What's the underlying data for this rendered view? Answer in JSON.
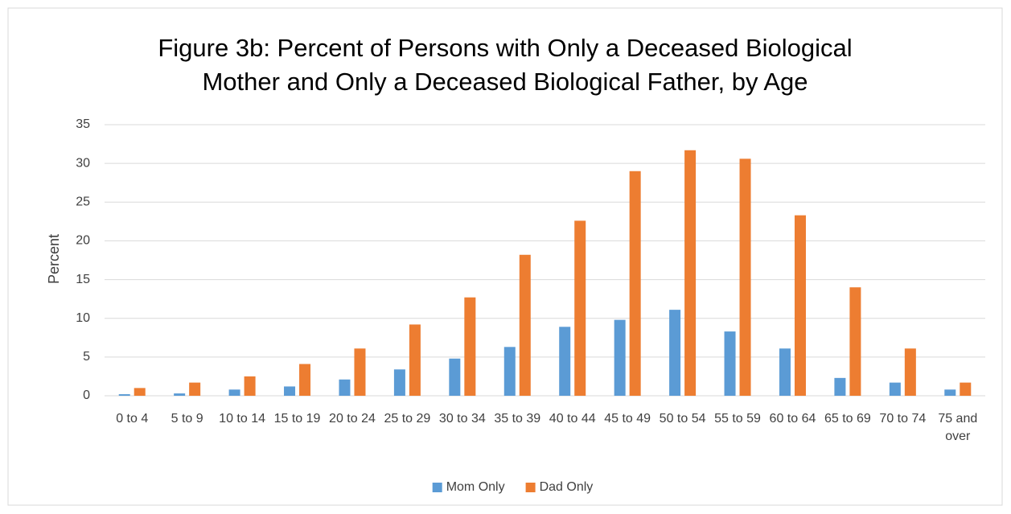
{
  "chart_data": {
    "type": "bar",
    "title": "Figure 3b: Percent of Persons with Only a Deceased Biological Mother and Only a Deceased Biological Father, by Age",
    "y_label": "Percent",
    "categories": [
      "0 to 4",
      "5 to 9",
      "10 to 14",
      "15 to 19",
      "20 to 24",
      "25 to 29",
      "30 to 34",
      "35 to 39",
      "40 to 44",
      "45 to 49",
      "50 to 54",
      "55 to 59",
      "60 to 64",
      "65 to 69",
      "70 to 74",
      "75 and over"
    ],
    "series": [
      {
        "name": "Mom Only",
        "color": "#5b9bd5",
        "values": [
          0.2,
          0.3,
          0.8,
          1.2,
          2.1,
          3.4,
          4.8,
          6.3,
          8.9,
          9.8,
          11.1,
          8.3,
          6.1,
          2.3,
          1.7,
          0.8
        ]
      },
      {
        "name": "Dad Only",
        "color": "#ed7d31",
        "values": [
          1.0,
          1.7,
          2.5,
          4.1,
          6.1,
          9.2,
          12.7,
          18.2,
          22.6,
          29.0,
          31.7,
          30.6,
          23.3,
          14.0,
          6.1,
          1.7
        ]
      }
    ],
    "ylim": [
      0,
      35
    ],
    "yticks": [
      0,
      5,
      10,
      15,
      20,
      25,
      30,
      35
    ],
    "grid": true,
    "legend": "bottom"
  }
}
